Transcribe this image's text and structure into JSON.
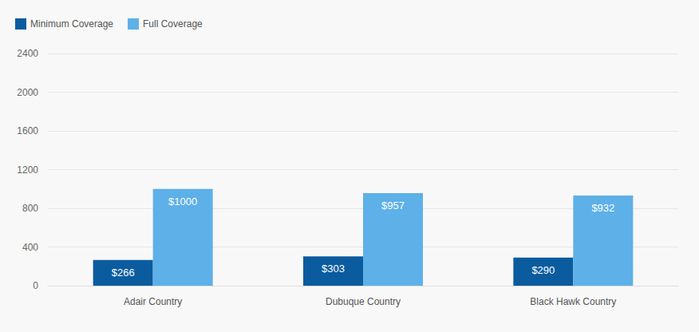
{
  "chart_data": {
    "type": "bar",
    "categories": [
      "Adair Country",
      "Dubuque Country",
      "Black Hawk Country"
    ],
    "series": [
      {
        "name": "Minimum Coverage",
        "color": "#0b5c9e",
        "values": [
          266,
          303,
          290
        ],
        "value_labels": [
          "$266",
          "$303",
          "$290"
        ]
      },
      {
        "name": "Full Coverage",
        "color": "#5eb0e8",
        "values": [
          1000,
          957,
          932
        ],
        "value_labels": [
          "$1000",
          "$957",
          "$932"
        ]
      }
    ],
    "ylim": [
      0,
      2400
    ],
    "yticks": [
      0,
      400,
      800,
      1200,
      1600,
      2000,
      2400
    ],
    "grid": true,
    "legend": "top-left",
    "data_labels": true
  }
}
